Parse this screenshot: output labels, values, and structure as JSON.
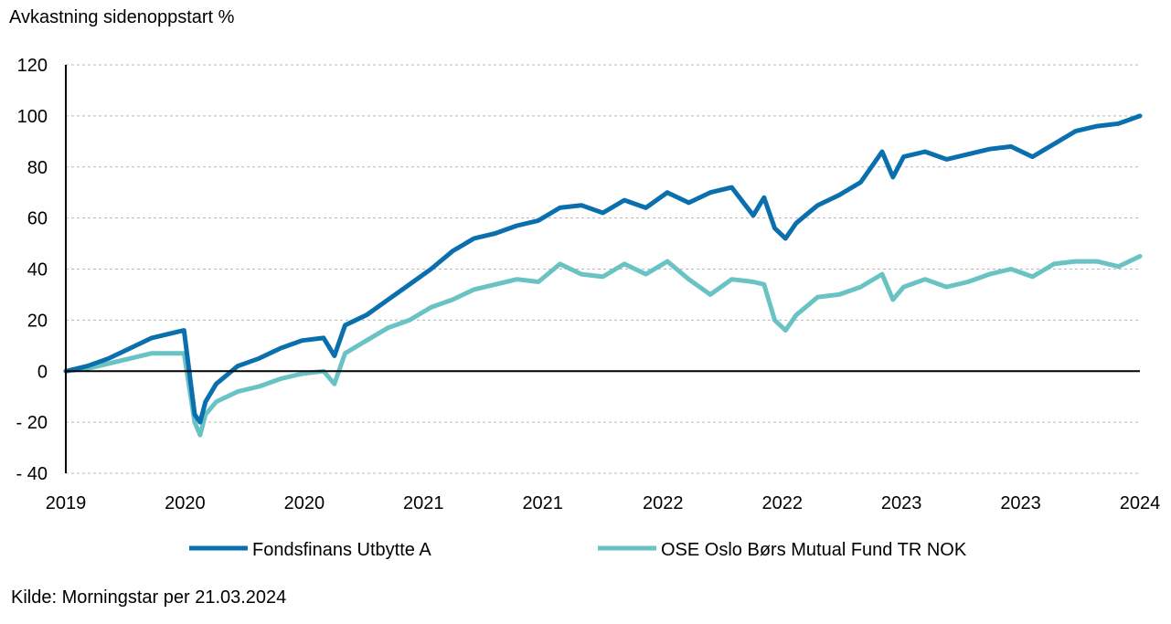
{
  "title": "Avkastning sidenoppstart %",
  "source": "Kilde: Morningstar per 21.03.2024",
  "colors": {
    "series1": "#0a6fad",
    "series2": "#69c2c4",
    "grid": "#b8b8b8",
    "axis": "#000000"
  },
  "chart_data": {
    "type": "line",
    "title": "Avkastning sidenoppstart %",
    "xlabel": "",
    "ylabel": "",
    "ylim": [
      -40,
      120
    ],
    "yticks": [
      -40,
      -20,
      0,
      20,
      40,
      60,
      80,
      100,
      120
    ],
    "ytick_labels": [
      "- 40",
      "- 20",
      "0",
      "20",
      "40",
      "60",
      "80",
      "100",
      "120"
    ],
    "xlim": [
      0,
      1
    ],
    "xtick_positions": [
      0,
      0.111,
      0.222,
      0.333,
      0.444,
      0.556,
      0.667,
      0.778,
      0.889,
      1.0
    ],
    "xtick_labels": [
      "2019",
      "2020",
      "2020",
      "2021",
      "2021",
      "2022",
      "2022",
      "2023",
      "2023",
      "2024"
    ],
    "grid": true,
    "legend_position": "bottom",
    "x": [
      0,
      0.02,
      0.04,
      0.06,
      0.08,
      0.1,
      0.11,
      0.12,
      0.125,
      0.13,
      0.14,
      0.16,
      0.18,
      0.2,
      0.22,
      0.24,
      0.25,
      0.26,
      0.28,
      0.3,
      0.32,
      0.34,
      0.36,
      0.38,
      0.4,
      0.42,
      0.44,
      0.46,
      0.48,
      0.5,
      0.52,
      0.54,
      0.56,
      0.58,
      0.6,
      0.62,
      0.64,
      0.65,
      0.66,
      0.67,
      0.68,
      0.7,
      0.72,
      0.74,
      0.76,
      0.77,
      0.78,
      0.8,
      0.82,
      0.84,
      0.86,
      0.88,
      0.9,
      0.92,
      0.94,
      0.96,
      0.98,
      1.0
    ],
    "series": [
      {
        "name": "Fondsfinans Utbytte A",
        "values": [
          0,
          2,
          5,
          9,
          13,
          15,
          16,
          -17,
          -20,
          -12,
          -5,
          2,
          5,
          9,
          12,
          13,
          6,
          18,
          22,
          28,
          34,
          40,
          47,
          52,
          54,
          57,
          59,
          64,
          65,
          62,
          67,
          64,
          70,
          66,
          70,
          72,
          61,
          68,
          56,
          52,
          58,
          65,
          69,
          74,
          86,
          76,
          84,
          86,
          83,
          85,
          87,
          88,
          84,
          89,
          94,
          96,
          97,
          100
        ]
      },
      {
        "name": "OSE Oslo Børs Mutual Fund TR NOK",
        "values": [
          0,
          1,
          3,
          5,
          7,
          7,
          7,
          -20,
          -25,
          -17,
          -12,
          -8,
          -6,
          -3,
          -1,
          0,
          -5,
          7,
          12,
          17,
          20,
          25,
          28,
          32,
          34,
          36,
          35,
          42,
          38,
          37,
          42,
          38,
          43,
          36,
          30,
          36,
          35,
          34,
          20,
          16,
          22,
          29,
          30,
          33,
          38,
          28,
          33,
          36,
          33,
          35,
          38,
          40,
          37,
          42,
          43,
          43,
          41,
          45
        ]
      }
    ]
  },
  "legend": [
    {
      "label": "Fondsfinans Utbytte A"
    },
    {
      "label": "OSE Oslo Børs Mutual Fund TR NOK"
    }
  ]
}
